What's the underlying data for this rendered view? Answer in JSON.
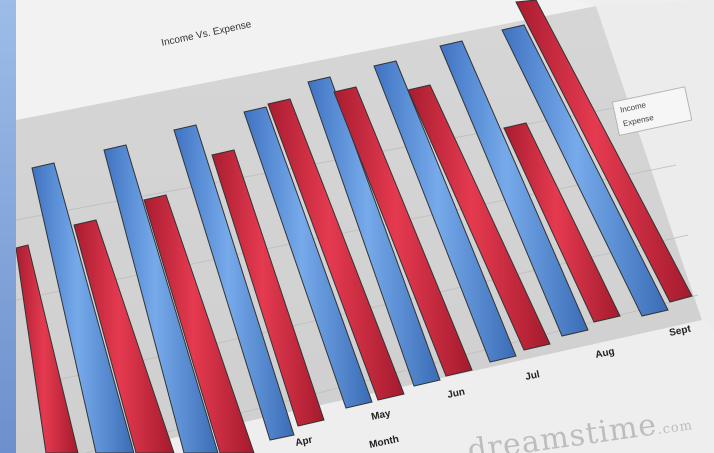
{
  "photo": {
    "chart_title": "Income Vs. Expense",
    "legend_labels": [
      "Income",
      "Expense"
    ],
    "x_tick_labels": [
      "Apr",
      "May",
      "Jun",
      "Jul",
      "Aug",
      "Sept"
    ],
    "x_axis_label": "Month",
    "watermark_text": "dreamstime",
    "watermark_suffix": ".com",
    "colors": {
      "income_bar": "#5b93dc",
      "expense_bar": "#d3273d",
      "paper": "#e9e9e9",
      "background": "#5f86c6"
    }
  }
}
